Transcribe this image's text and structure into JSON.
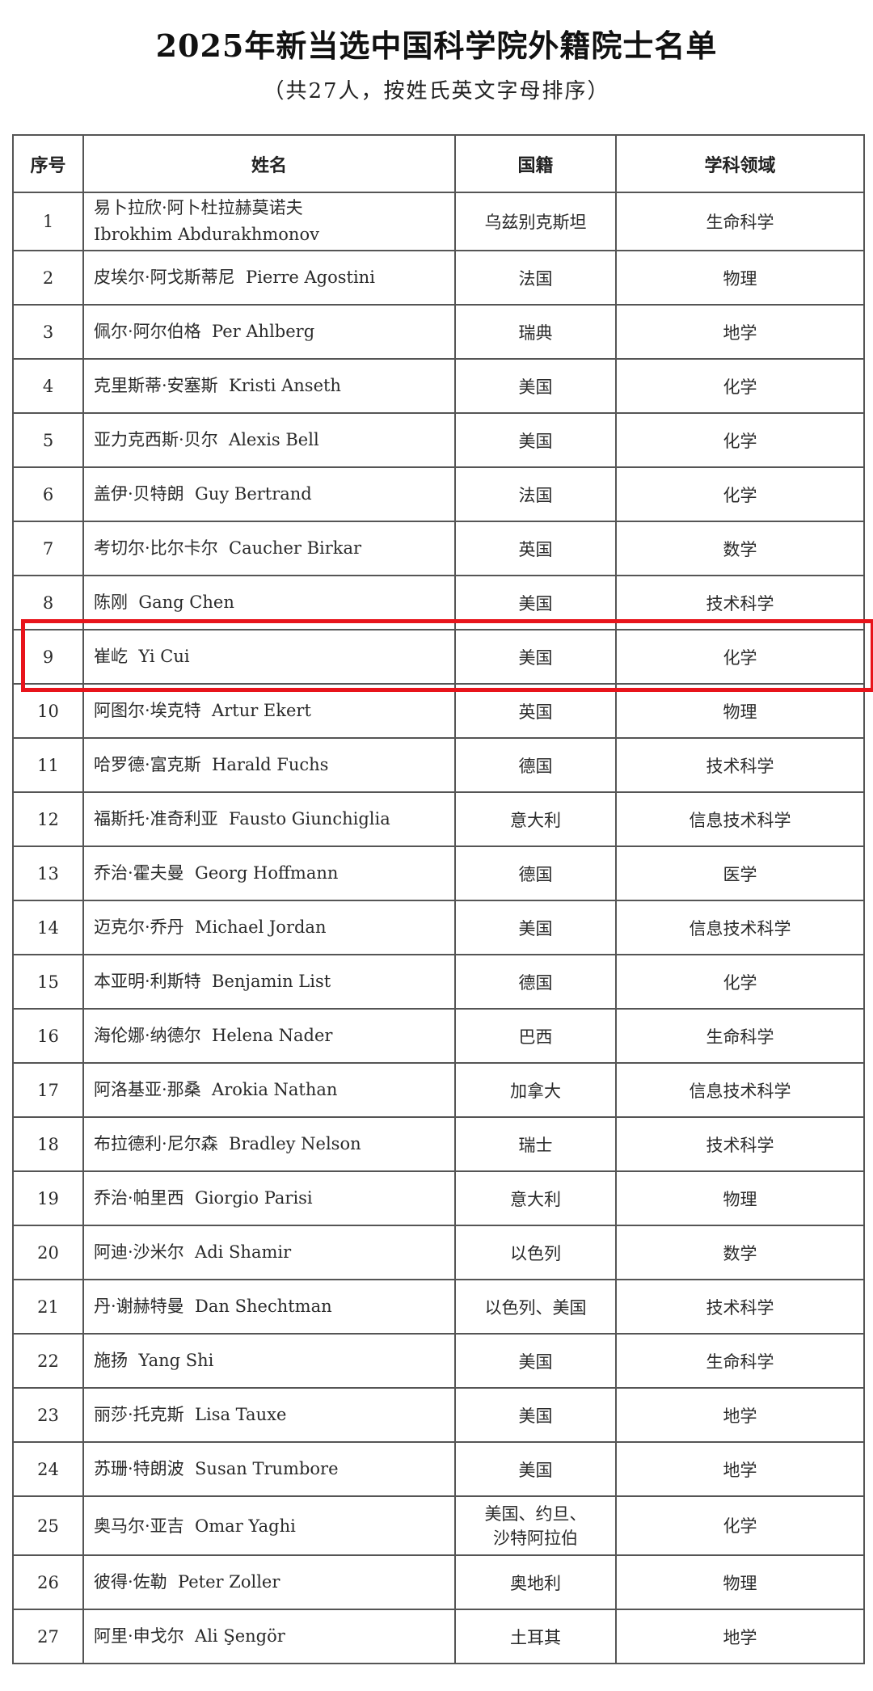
{
  "title": "2025年新当选中国科学院外籍院士名单",
  "subtitle": "（共27人，按姓氏英文字母排序）",
  "headers": [
    "序号",
    "姓名",
    "国籍",
    "学科领域"
  ],
  "highlight_color": "#e8141b",
  "highlighted_row": 9,
  "rows": [
    {
      "no": "1",
      "name_cn": "易卜拉欣·阿卜杜拉赫莫诺夫",
      "name_en": "Ibrokhim Abdurakhmonov",
      "nationality": "乌兹别克斯坦",
      "field": "生命科学"
    },
    {
      "no": "2",
      "name_cn": "皮埃尔·阿戈斯蒂尼",
      "name_en": "Pierre Agostini",
      "nationality": "法国",
      "field": "物理"
    },
    {
      "no": "3",
      "name_cn": "佩尔·阿尔伯格",
      "name_en": "Per Ahlberg",
      "nationality": "瑞典",
      "field": "地学"
    },
    {
      "no": "4",
      "name_cn": "克里斯蒂·安塞斯",
      "name_en": "Kristi Anseth",
      "nationality": "美国",
      "field": "化学"
    },
    {
      "no": "5",
      "name_cn": "亚力克西斯·贝尔",
      "name_en": "Alexis Bell",
      "nationality": "美国",
      "field": "化学"
    },
    {
      "no": "6",
      "name_cn": "盖伊·贝特朗",
      "name_en": "Guy Bertrand",
      "nationality": "法国",
      "field": "化学"
    },
    {
      "no": "7",
      "name_cn": "考切尔·比尔卡尔",
      "name_en": "Caucher Birkar",
      "nationality": "英国",
      "field": "数学"
    },
    {
      "no": "8",
      "name_cn": "陈刚",
      "name_en": "Gang Chen",
      "nationality": "美国",
      "field": "技术科学"
    },
    {
      "no": "9",
      "name_cn": "崔屹",
      "name_en": "Yi Cui",
      "nationality": "美国",
      "field": "化学"
    },
    {
      "no": "10",
      "name_cn": "阿图尔·埃克特",
      "name_en": "Artur Ekert",
      "nationality": "英国",
      "field": "物理"
    },
    {
      "no": "11",
      "name_cn": "哈罗德·富克斯",
      "name_en": "Harald Fuchs",
      "nationality": "德国",
      "field": "技术科学"
    },
    {
      "no": "12",
      "name_cn": "福斯托·准奇利亚",
      "name_en": "Fausto Giunchiglia",
      "nationality": "意大利",
      "field": "信息技术科学"
    },
    {
      "no": "13",
      "name_cn": "乔治·霍夫曼",
      "name_en": "Georg Hoffmann",
      "nationality": "德国",
      "field": "医学"
    },
    {
      "no": "14",
      "name_cn": "迈克尔·乔丹",
      "name_en": "Michael Jordan",
      "nationality": "美国",
      "field": "信息技术科学"
    },
    {
      "no": "15",
      "name_cn": "本亚明·利斯特",
      "name_en": "Benjamin List",
      "nationality": "德国",
      "field": "化学"
    },
    {
      "no": "16",
      "name_cn": "海伦娜·纳德尔",
      "name_en": "Helena Nader",
      "nationality": "巴西",
      "field": "生命科学"
    },
    {
      "no": "17",
      "name_cn": "阿洛基亚·那桑",
      "name_en": "Arokia Nathan",
      "nationality": "加拿大",
      "field": "信息技术科学"
    },
    {
      "no": "18",
      "name_cn": "布拉德利·尼尔森",
      "name_en": "Bradley Nelson",
      "nationality": "瑞士",
      "field": "技术科学"
    },
    {
      "no": "19",
      "name_cn": "乔治·帕里西",
      "name_en": "Giorgio Parisi",
      "nationality": "意大利",
      "field": "物理"
    },
    {
      "no": "20",
      "name_cn": "阿迪·沙米尔",
      "name_en": "Adi Shamir",
      "nationality": "以色列",
      "field": "数学"
    },
    {
      "no": "21",
      "name_cn": "丹·谢赫特曼",
      "name_en": "Dan Shechtman",
      "nationality": "以色列、美国",
      "field": "技术科学"
    },
    {
      "no": "22",
      "name_cn": "施扬",
      "name_en": "Yang Shi",
      "nationality": "美国",
      "field": "生命科学"
    },
    {
      "no": "23",
      "name_cn": "丽莎·托克斯",
      "name_en": "Lisa Tauxe",
      "nationality": "美国",
      "field": "地学"
    },
    {
      "no": "24",
      "name_cn": "苏珊·特朗波",
      "name_en": "Susan Trumbore",
      "nationality": "美国",
      "field": "地学"
    },
    {
      "no": "25",
      "name_cn": "奥马尔·亚吉",
      "name_en": "Omar Yaghi",
      "nationality": "美国、约旦、沙特阿拉伯",
      "field": "化学"
    },
    {
      "no": "26",
      "name_cn": "彼得·佐勒",
      "name_en": "Peter Zoller",
      "nationality": "奥地利",
      "field": "物理"
    },
    {
      "no": "27",
      "name_cn": "阿里·申戈尔",
      "name_en": "Ali Şengör",
      "nationality": "土耳其",
      "field": "地学"
    }
  ]
}
